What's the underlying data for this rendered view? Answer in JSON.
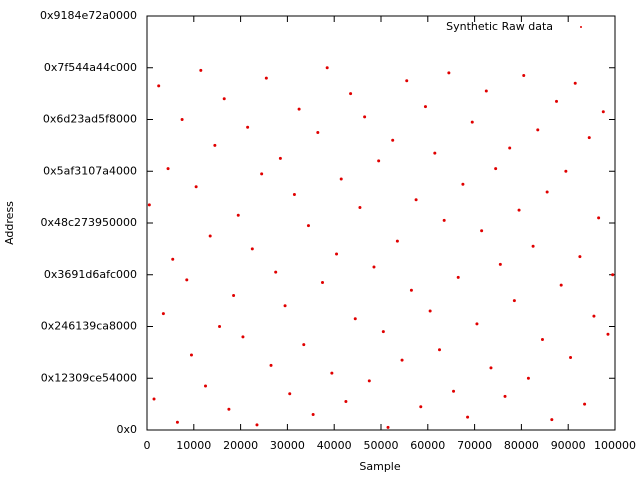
{
  "chart_data": {
    "type": "scatter",
    "xlabel": "Sample",
    "ylabel": "Address",
    "x": [
      500,
      1500,
      2500,
      3500,
      4500,
      5500,
      6500,
      7500,
      8500,
      9500,
      10500,
      11500,
      12500,
      13500,
      14500,
      15500,
      16500,
      17500,
      18500,
      19500,
      20500,
      21500,
      22500,
      23500,
      24500,
      25500,
      26500,
      27500,
      28500,
      29500,
      30500,
      31500,
      32500,
      33500,
      34500,
      35500,
      36500,
      37500,
      38500,
      39500,
      40500,
      41500,
      42500,
      43500,
      44500,
      45500,
      46500,
      47500,
      48500,
      49500,
      50500,
      51500,
      52500,
      53500,
      54500,
      55500,
      56500,
      57500,
      58500,
      59500,
      60500,
      61500,
      62500,
      63500,
      64500,
      65500,
      66500,
      67500,
      68500,
      69500,
      70500,
      71500,
      72500,
      73500,
      74500,
      75500,
      76500,
      77500,
      78500,
      79500,
      80500,
      81500,
      82500,
      83500,
      84500,
      85500,
      86500,
      87500,
      88500,
      89500,
      90500,
      91500,
      92500,
      93500,
      94500,
      95500,
      96500,
      97500,
      98500,
      99500
    ],
    "series": [
      {
        "name": "Synthetic Raw data",
        "color": "#e00000",
        "values": [
          87000000000000.0,
          12000000000000.0,
          133000000000000.0,
          45000000000000.0,
          101000000000000.0,
          66000000000000.0,
          3000000000000.0,
          120000000000000.0,
          58000000000000.0,
          29000000000000.0,
          94000000000000.0,
          139000000000000.0,
          17000000000000.0,
          75000000000000.0,
          110000000000000.0,
          40000000000000.0,
          128000000000000.0,
          8000000000000.0,
          52000000000000.0,
          83000000000000.0,
          36000000000000.0,
          117000000000000.0,
          70000000000000.0,
          2000000000000.0,
          99000000000000.0,
          136000000000000.0,
          25000000000000.0,
          61000000000000.0,
          105000000000000.0,
          48000000000000.0,
          14000000000000.0,
          91000000000000.0,
          124000000000000.0,
          33000000000000.0,
          79000000000000.0,
          6000000000000.0,
          115000000000000.0,
          57000000000000.0,
          140000000000000.0,
          22000000000000.0,
          68000000000000.0,
          97000000000000.0,
          11000000000000.0,
          130000000000000.0,
          43000000000000.0,
          86000000000000.0,
          121000000000000.0,
          19000000000000.0,
          63000000000000.0,
          104000000000000.0,
          38000000000000.0,
          1000000000000.0,
          112000000000000.0,
          73000000000000.0,
          27000000000000.0,
          135000000000000.0,
          54000000000000.0,
          89000000000000.0,
          9000000000000.0,
          125000000000000.0,
          46000000000000.0,
          107000000000000.0,
          31000000000000.0,
          81000000000000.0,
          138000000000000.0,
          15000000000000.0,
          59000000000000.0,
          95000000000000.0,
          5000000000000.0,
          119000000000000.0,
          41000000000000.0,
          77000000000000.0,
          131000000000000.0,
          24000000000000.0,
          101000000000000.0,
          64000000000000.0,
          13000000000000.0,
          109000000000000.0,
          50000000000000.0,
          85000000000000.0,
          137000000000000.0,
          20000000000000.0,
          71000000000000.0,
          116000000000000.0,
          35000000000000.0,
          92000000000000.0,
          4000000000000.0,
          127000000000000.0,
          56000000000000.0,
          100000000000000.0,
          28000000000000.0,
          134000000000000.0,
          67000000000000.0,
          10000000000000.0,
          113000000000000.0,
          44000000000000.0,
          82000000000000.0,
          123000000000000.0,
          37000000000000.0,
          60000000000000.0
        ]
      }
    ],
    "xlim": [
      0,
      100000
    ],
    "xticks": [
      0,
      10000,
      20000,
      30000,
      40000,
      50000,
      60000,
      70000,
      80000,
      90000,
      100000
    ],
    "ylim": [
      0,
      160000000000000
    ],
    "yticks": [
      {
        "value": 0,
        "label": "0x0"
      },
      {
        "value": 20000000000000,
        "label": "0x12309ce54000"
      },
      {
        "value": 40000000000000,
        "label": "0x246139ca8000"
      },
      {
        "value": 60000000000000,
        "label": "0x3691d6afc000"
      },
      {
        "value": 80000000000000,
        "label": "0x48c273950000"
      },
      {
        "value": 100000000000000,
        "label": "0x5af3107a4000"
      },
      {
        "value": 120000000000000,
        "label": "0x6d23ad5f8000"
      },
      {
        "value": 140000000000000,
        "label": "0x7f544a44c000"
      },
      {
        "value": 160000000000000,
        "label": "0x9184e72a0000"
      }
    ],
    "legend": "top-right"
  }
}
